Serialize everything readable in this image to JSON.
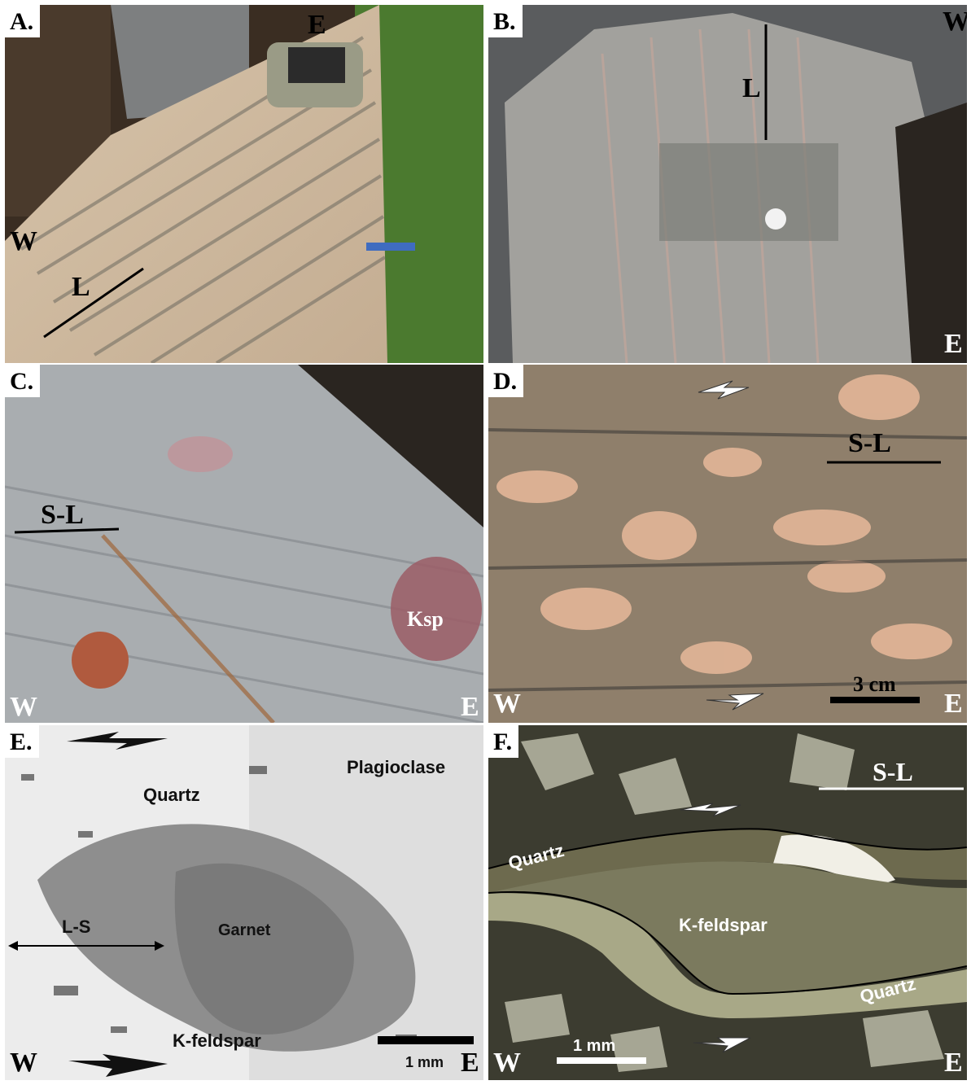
{
  "panels": {
    "a": {
      "letter": "A.",
      "labels": {
        "top": "E",
        "left": "W",
        "lineation": "L"
      }
    },
    "b": {
      "letter": "B.",
      "labels": {
        "top": "W",
        "bottom": "E",
        "lineation": "L"
      }
    },
    "c": {
      "letter": "C.",
      "labels": {
        "fabric": "S-L",
        "ksp": "Ksp",
        "west": "W",
        "east": "E"
      }
    },
    "d": {
      "letter": "D.",
      "labels": {
        "fabric": "S-L",
        "scale": "3 cm",
        "west": "W",
        "east": "E"
      }
    },
    "e": {
      "letter": "E.",
      "labels": {
        "quartz": "Quartz",
        "plagioclase": "Plagioclase",
        "garnet": "Garnet",
        "fabric": "L-S",
        "kfeldspar": "K-feldspar",
        "scale": "1 mm",
        "west": "W",
        "east": "E"
      }
    },
    "f": {
      "letter": "F.",
      "labels": {
        "fabric": "S-L",
        "quartz_top": "Quartz",
        "kfeldspar": "K-feldspar",
        "quartz_bottom": "Quartz",
        "scale": "1 mm",
        "west": "W",
        "east": "E"
      }
    }
  },
  "colors": {
    "rock_a": "#c9b59c",
    "rock_b": "#9d9c98",
    "rock_c": "#a9adb0",
    "rock_d": "#8f7f6b",
    "thin_section_e": "#e8e8e8",
    "thin_section_f": "#3c3c30"
  }
}
